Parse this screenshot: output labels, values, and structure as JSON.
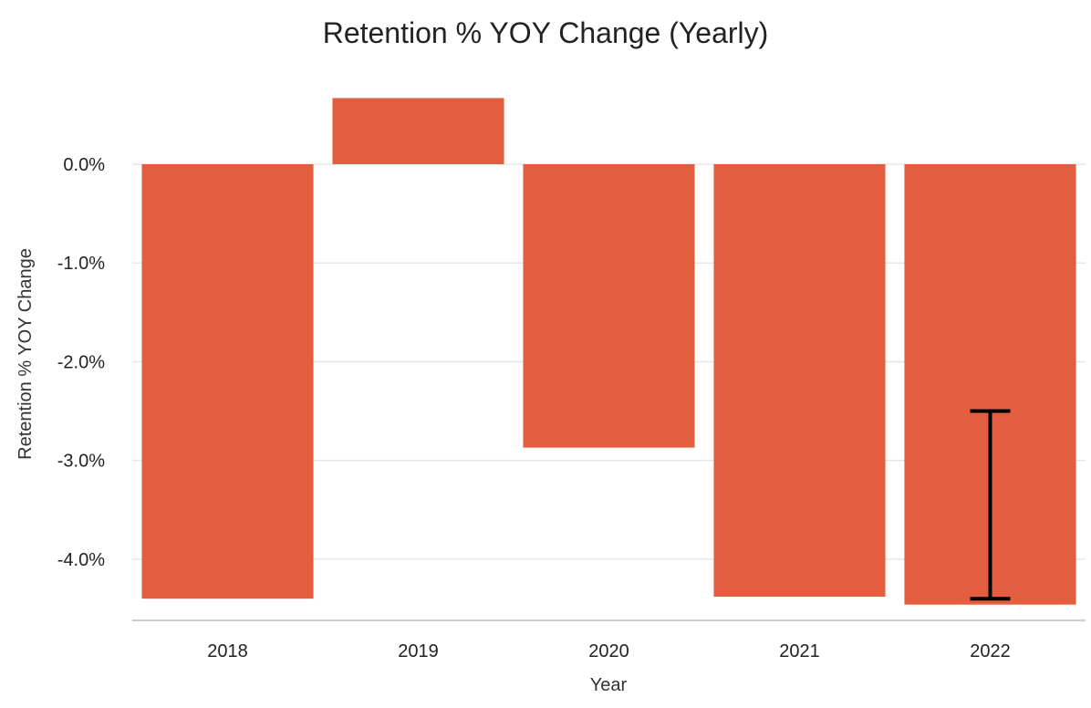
{
  "chart_data": {
    "type": "bar",
    "title": "Retention % YOY Change (Yearly)",
    "xlabel": "Year",
    "ylabel": "Retention % YOY Change",
    "categories": [
      "2018",
      "2019",
      "2020",
      "2021",
      "2022"
    ],
    "values": [
      -4.4,
      0.67,
      -2.87,
      -4.38,
      -4.46
    ],
    "yticks": [
      0.0,
      -1.0,
      -2.0,
      -3.0,
      -4.0
    ],
    "ytick_labels": [
      "0.0%",
      "-1.0%",
      "-2.0%",
      "-3.0%",
      "-4.0%"
    ],
    "ylim": [
      -4.62,
      0.97
    ],
    "grid": true,
    "legend": "none",
    "bar_color": "#E35E3F",
    "error_bar": {
      "category": "2022",
      "low": -4.4,
      "high": -2.5
    }
  }
}
